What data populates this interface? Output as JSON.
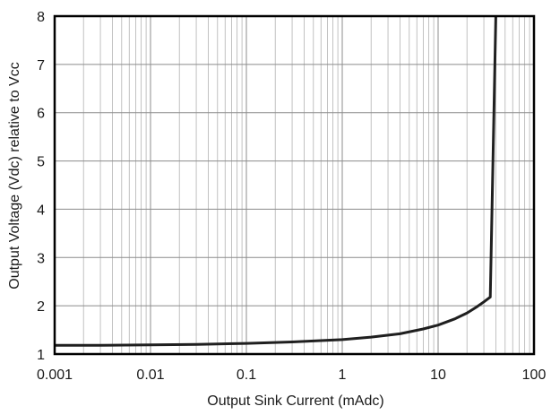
{
  "chart_data": {
    "type": "line",
    "title": "",
    "xlabel": "Output Sink Current (mAdc)",
    "ylabel": "Output Voltage (Vdc) relative to Vcc",
    "x_scale": "log",
    "xlim": [
      0.001,
      100
    ],
    "ylim": [
      1,
      8
    ],
    "x_ticks": [
      0.001,
      0.01,
      0.1,
      1,
      10,
      100
    ],
    "x_tick_labels": [
      "0.001",
      "0.01",
      "0.1",
      "1",
      "10",
      "100"
    ],
    "y_ticks": [
      1,
      2,
      3,
      4,
      5,
      6,
      7,
      8
    ],
    "y_tick_labels": [
      "1",
      "2",
      "3",
      "4",
      "5",
      "6",
      "7",
      "8"
    ],
    "grid": true,
    "legend": "none",
    "series": [
      {
        "x": [
          0.001,
          0.003,
          0.01,
          0.03,
          0.1,
          0.3,
          1,
          2,
          4,
          7,
          10,
          15,
          20,
          25,
          30,
          35,
          40
        ],
        "y": [
          1.18,
          1.18,
          1.19,
          1.2,
          1.22,
          1.25,
          1.3,
          1.35,
          1.42,
          1.52,
          1.6,
          1.73,
          1.85,
          1.97,
          2.08,
          2.18,
          8.0
        ]
      }
    ],
    "colors": {
      "line": "#1f1f1f",
      "grid": "#b3b3b3",
      "frame": "#000000"
    }
  }
}
